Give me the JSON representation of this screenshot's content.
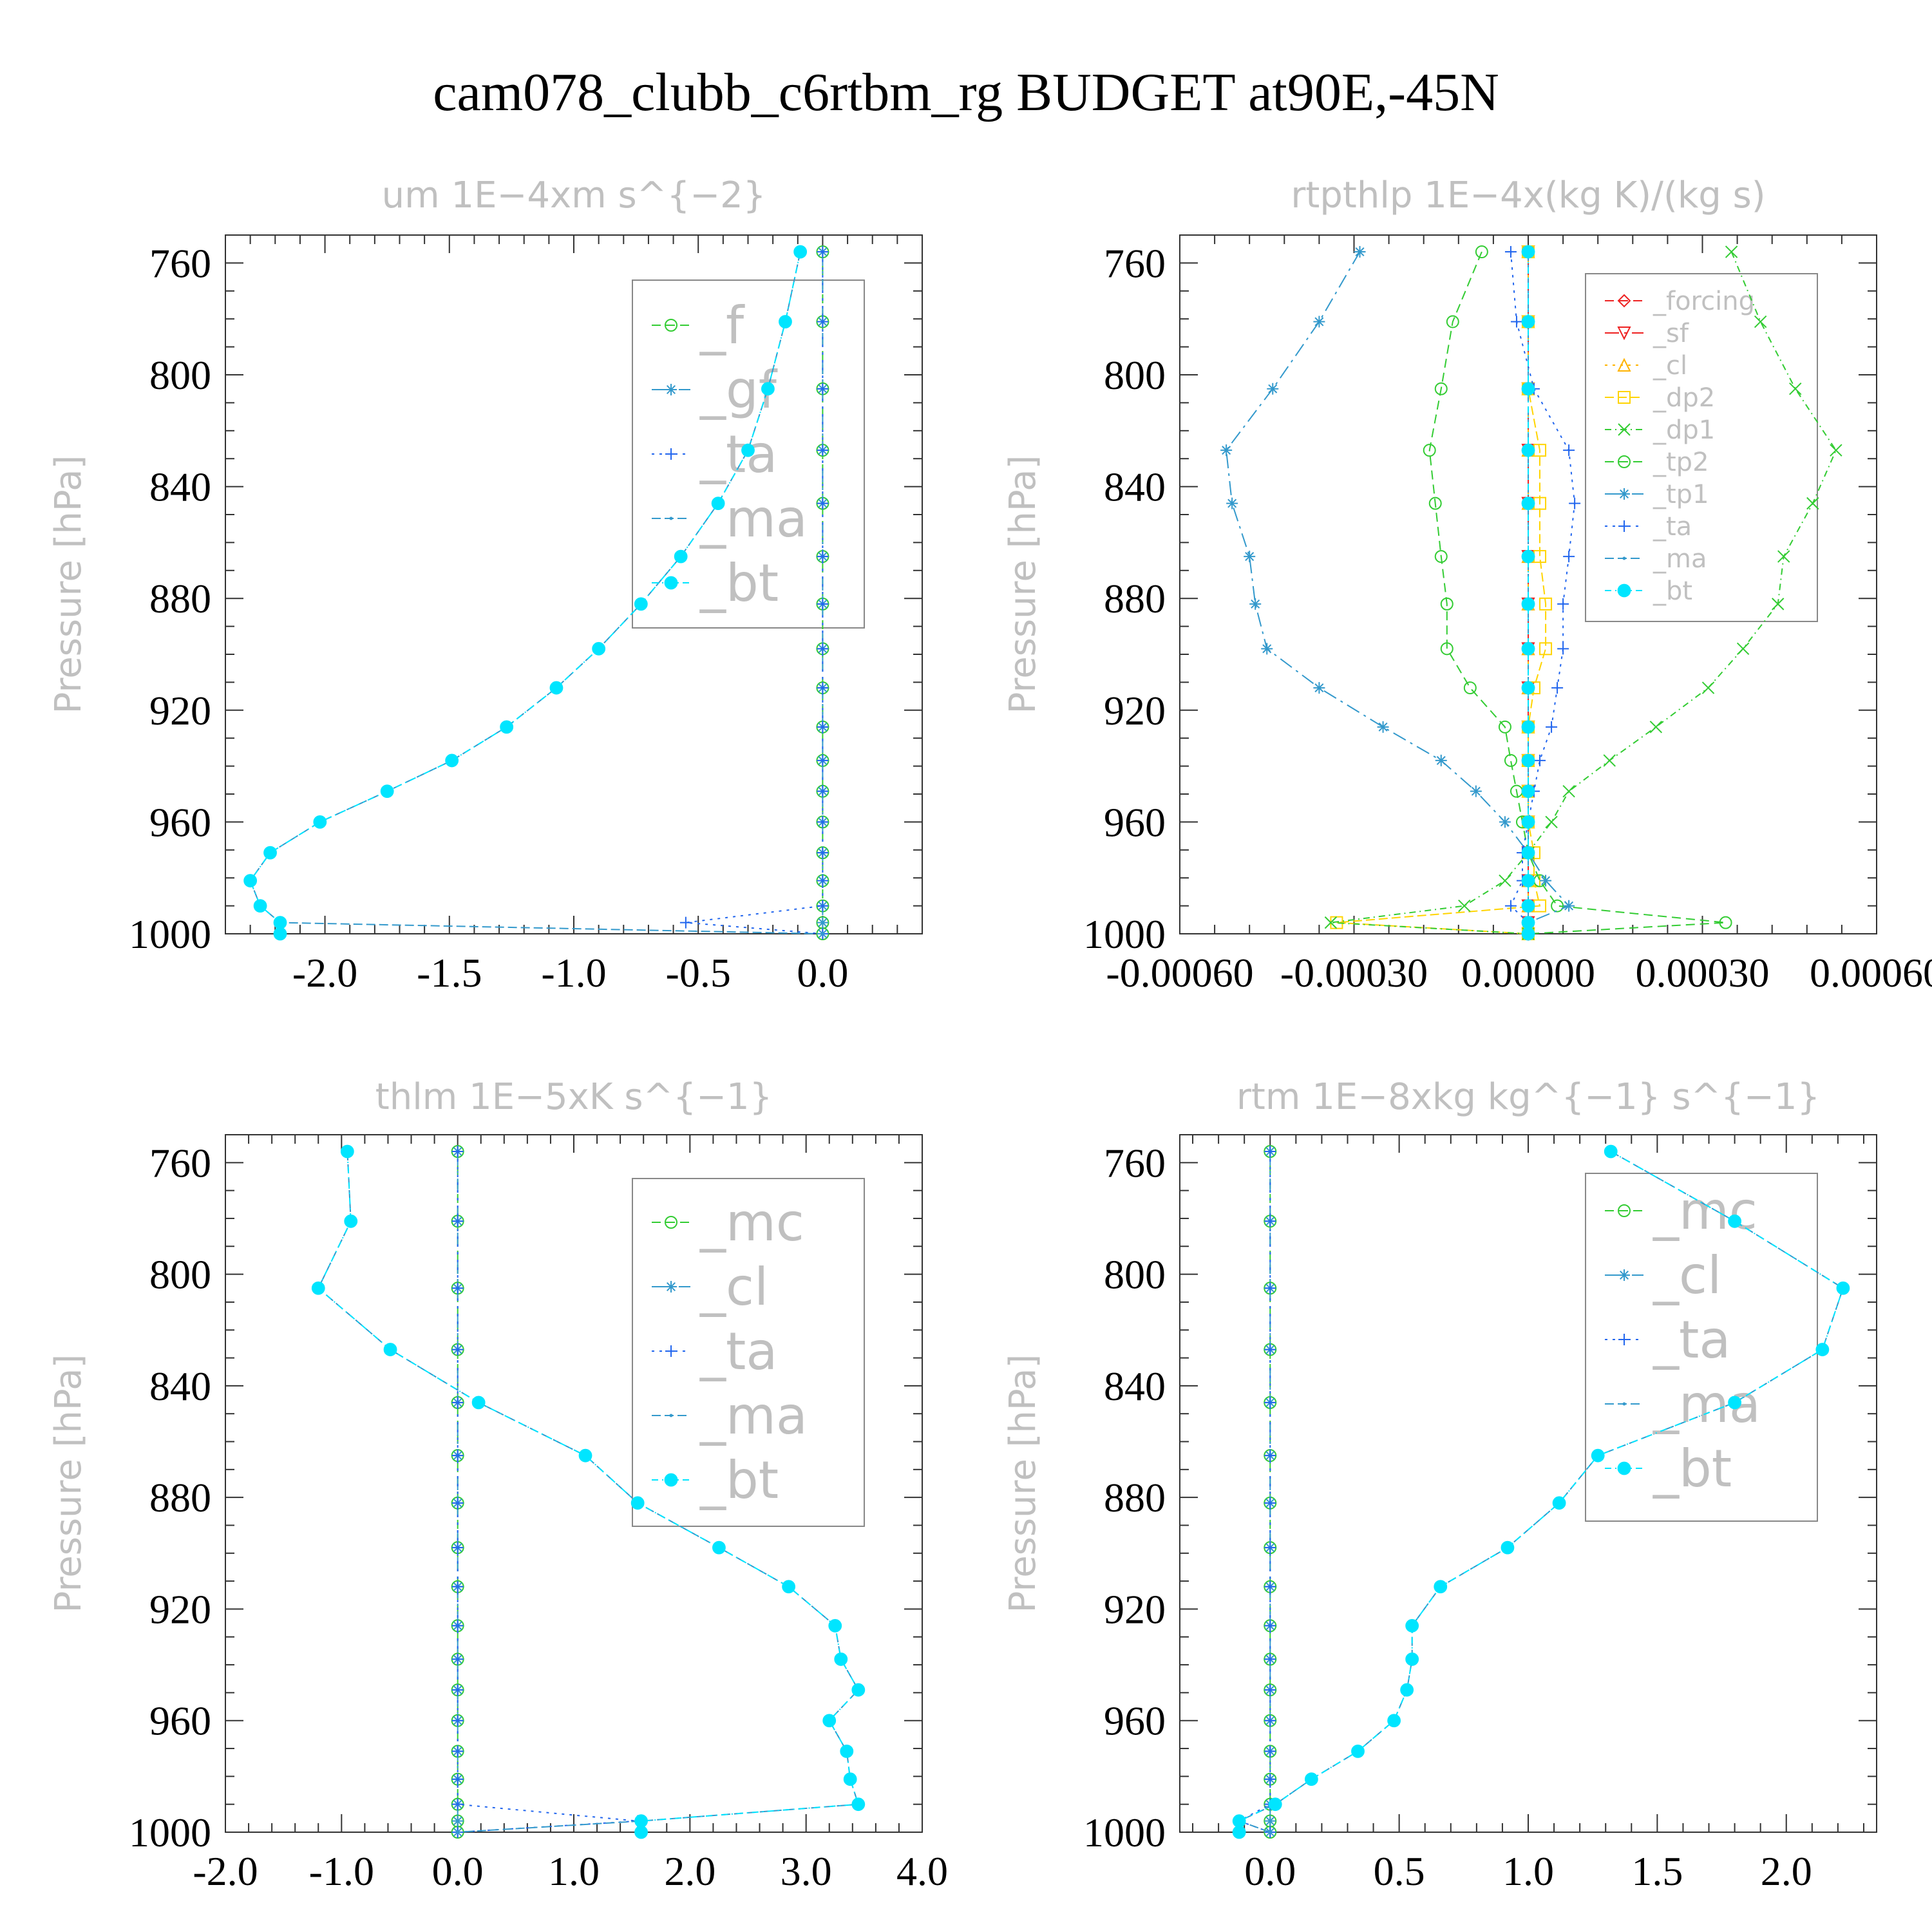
{
  "title": "cam078_clubb_c6rtbm_rg  BUDGET at90E,-45N",
  "colors": {
    "frame": "#333333",
    "label_gray": "#c0c0c0",
    "green": "#33cc33",
    "blue": "#2266ee",
    "cyan": "#00e5ff",
    "red": "#ee2222",
    "orange": "#ffb300",
    "yellow": "#ffd400",
    "teal": "#3399cc"
  },
  "levels": [
    756,
    781,
    805,
    827,
    846,
    865,
    882,
    898,
    912,
    926,
    938,
    949,
    960,
    971,
    981,
    990,
    996,
    1000
  ],
  "chart_data": [
    {
      "id": "um",
      "type": "line",
      "title": "um   1E−4xm s^{−2}",
      "ylabel": "Pressure [hPa]",
      "ylim": [
        1000,
        750
      ],
      "yticks": [
        "760",
        "800",
        "840",
        "880",
        "920",
        "960",
        "1000"
      ],
      "xlim": [
        -2.4,
        0.4
      ],
      "xticks": [
        "-2.0",
        "-1.5",
        "-1.0",
        "-0.5",
        "0.0"
      ],
      "legend": [
        "_f",
        "_gf",
        "_ta",
        "_ma",
        "_bt"
      ],
      "series": [
        {
          "name": "_f",
          "color": "green",
          "marker": "circle",
          "values": [
            0,
            0,
            0,
            0,
            0,
            0,
            0,
            0,
            0,
            0,
            0,
            0,
            0,
            0,
            0,
            0,
            0,
            0
          ]
        },
        {
          "name": "_gf",
          "color": "teal",
          "marker": "star",
          "values": [
            0,
            0,
            0,
            0,
            0,
            0,
            0,
            0,
            0,
            0,
            0,
            0,
            0,
            0,
            0,
            0,
            0,
            0
          ]
        },
        {
          "name": "_ta",
          "color": "blue",
          "marker": "plus",
          "values": [
            0,
            0,
            0,
            0,
            0,
            0,
            0,
            0,
            0,
            0,
            0,
            0,
            0,
            0,
            0,
            0,
            -0.55,
            0
          ]
        },
        {
          "name": "_ma",
          "color": "teal",
          "marker": "dot",
          "values": [
            -0.09,
            -0.15,
            -0.22,
            -0.3,
            -0.42,
            -0.57,
            -0.73,
            -0.9,
            -1.07,
            -1.27,
            -1.49,
            -1.75,
            -2.02,
            -2.22,
            -2.3,
            -2.26,
            -2.18,
            0
          ]
        },
        {
          "name": "_bt",
          "color": "cyan",
          "marker": "filled",
          "values": [
            -0.09,
            -0.15,
            -0.22,
            -0.3,
            -0.42,
            -0.57,
            -0.73,
            -0.9,
            -1.07,
            -1.27,
            -1.49,
            -1.75,
            -2.02,
            -2.22,
            -2.3,
            -2.26,
            -2.18,
            -2.18
          ]
        }
      ]
    },
    {
      "id": "rtpthlp",
      "type": "line",
      "title": "rtpthlp   1E−4x(kg K)/(kg s)",
      "ylabel": "Pressure [hPa]",
      "ylim": [
        1000,
        750
      ],
      "yticks": [
        "760",
        "800",
        "840",
        "880",
        "920",
        "960",
        "1000"
      ],
      "xlim": [
        -0.0006,
        0.0006
      ],
      "xticks": [
        "-0.00060",
        "-0.00030",
        "0.00000",
        "0.00030",
        "0.00060"
      ],
      "legend": [
        "_forcing",
        "_sf",
        "_cl",
        "_dp2",
        "_dp1",
        "_tp2",
        "_tp1",
        "_ta",
        "_ma",
        "_bt"
      ],
      "series": [
        {
          "name": "_forcing",
          "color": "red",
          "marker": "diamond",
          "values": [
            0,
            0,
            0,
            0,
            0,
            0,
            0,
            0,
            0,
            0,
            0,
            0,
            0,
            0,
            0,
            0,
            0,
            0
          ]
        },
        {
          "name": "_sf",
          "color": "red",
          "marker": "tri-down",
          "values": [
            0,
            0,
            0,
            0,
            0,
            0,
            0,
            0,
            0,
            0,
            0,
            0,
            0,
            0,
            0,
            0,
            0,
            0
          ]
        },
        {
          "name": "_cl",
          "color": "orange",
          "marker": "tri-up",
          "values": [
            0,
            0,
            0,
            0,
            0,
            0,
            0,
            0,
            0,
            0,
            0,
            0,
            0,
            0,
            0,
            0,
            0,
            0
          ]
        },
        {
          "name": "_dp2",
          "color": "yellow",
          "marker": "square",
          "values": [
            0,
            0,
            0,
            2e-05,
            2e-05,
            2e-05,
            3e-05,
            3e-05,
            1e-05,
            0,
            0,
            0,
            0,
            1e-05,
            1e-05,
            2e-05,
            -0.00033,
            0
          ]
        },
        {
          "name": "_dp1",
          "color": "green",
          "marker": "x",
          "values": [
            0.00035,
            0.0004,
            0.00046,
            0.00053,
            0.00049,
            0.00044,
            0.00043,
            0.00037,
            0.00031,
            0.00022,
            0.00014,
            7e-05,
            4e-05,
            0,
            -4e-05,
            -0.00011,
            -0.00034,
            0
          ]
        },
        {
          "name": "_tp2",
          "color": "green",
          "marker": "circle",
          "values": [
            -8e-05,
            -0.00013,
            -0.00015,
            -0.00017,
            -0.00016,
            -0.00015,
            -0.00014,
            -0.00014,
            -0.0001,
            -4e-05,
            -3e-05,
            -2e-05,
            -1e-05,
            0,
            2e-05,
            5e-05,
            0.00034,
            0
          ]
        },
        {
          "name": "_tp1",
          "color": "teal",
          "marker": "star",
          "values": [
            -0.00029,
            -0.00036,
            -0.00044,
            -0.00052,
            -0.00051,
            -0.00048,
            -0.00047,
            -0.00045,
            -0.00036,
            -0.00025,
            -0.00015,
            -9e-05,
            -4e-05,
            0,
            3e-05,
            7e-05,
            0,
            0
          ]
        },
        {
          "name": "_ta",
          "color": "blue",
          "marker": "plus",
          "values": [
            -3e-05,
            -2e-05,
            1e-05,
            7e-05,
            8e-05,
            7e-05,
            6e-05,
            6e-05,
            5e-05,
            4e-05,
            2e-05,
            1e-05,
            0,
            -1e-05,
            -1e-05,
            -3e-05,
            0,
            0
          ]
        },
        {
          "name": "_ma",
          "color": "teal",
          "marker": "dot",
          "values": [
            0,
            0,
            0,
            0,
            0,
            0,
            0,
            0,
            0,
            0,
            0,
            0,
            0,
            0,
            0,
            0,
            0,
            0
          ]
        },
        {
          "name": "_bt",
          "color": "cyan",
          "marker": "filled",
          "values": [
            0,
            0,
            0,
            0,
            0,
            0,
            0,
            0,
            0,
            0,
            0,
            0,
            0,
            0,
            0,
            0,
            0,
            0
          ]
        }
      ]
    },
    {
      "id": "thlm",
      "type": "line",
      "title": "thlm   1E−5xK s^{−1}",
      "ylabel": "Pressure [hPa]",
      "ylim": [
        1000,
        750
      ],
      "yticks": [
        "760",
        "800",
        "840",
        "880",
        "920",
        "960",
        "1000"
      ],
      "xlim": [
        -2.0,
        4.0
      ],
      "xticks": [
        "-2.0",
        "-1.0",
        "0.0",
        "1.0",
        "2.0",
        "3.0",
        "4.0"
      ],
      "legend": [
        "_mc",
        "_cl",
        "_ta",
        "_ma",
        "_bt"
      ],
      "series": [
        {
          "name": "_mc",
          "color": "green",
          "marker": "circle",
          "values": [
            0,
            0,
            0,
            0,
            0,
            0,
            0,
            0,
            0,
            0,
            0,
            0,
            0,
            0,
            0,
            0,
            0,
            0
          ]
        },
        {
          "name": "_cl",
          "color": "teal",
          "marker": "star",
          "values": [
            0,
            0,
            0,
            0,
            0,
            0,
            0,
            0,
            0,
            0,
            0,
            0,
            0,
            0,
            0,
            0,
            0,
            0
          ]
        },
        {
          "name": "_ta",
          "color": "blue",
          "marker": "plus",
          "values": [
            0,
            0,
            0,
            0,
            0,
            0,
            0,
            0,
            0,
            0,
            0,
            0,
            0,
            0,
            0,
            0,
            1.55,
            0
          ]
        },
        {
          "name": "_ma",
          "color": "teal",
          "marker": "dot",
          "values": [
            -0.95,
            -0.92,
            -1.2,
            -0.58,
            0.18,
            1.1,
            1.55,
            2.25,
            2.85,
            3.25,
            3.3,
            3.45,
            3.2,
            3.35,
            3.38,
            3.45,
            1.58,
            0
          ]
        },
        {
          "name": "_bt",
          "color": "cyan",
          "marker": "filled",
          "values": [
            -0.95,
            -0.92,
            -1.2,
            -0.58,
            0.18,
            1.1,
            1.55,
            2.25,
            2.85,
            3.25,
            3.3,
            3.45,
            3.2,
            3.35,
            3.38,
            3.45,
            1.58,
            1.58
          ]
        }
      ]
    },
    {
      "id": "rtm",
      "type": "line",
      "title": "rtm   1E−8xkg kg^{−1} s^{−1}",
      "ylabel": "Pressure [hPa]",
      "ylim": [
        1000,
        750
      ],
      "yticks": [
        "760",
        "800",
        "840",
        "880",
        "920",
        "960",
        "1000"
      ],
      "xlim": [
        -0.35,
        2.35
      ],
      "xticks": [
        "0.0",
        "0.5",
        "1.0",
        "1.5",
        "2.0"
      ],
      "legend": [
        "_mc",
        "_cl",
        "_ta",
        "_ma",
        "_bt"
      ],
      "series": [
        {
          "name": "_mc",
          "color": "green",
          "marker": "circle",
          "values": [
            0,
            0,
            0,
            0,
            0,
            0,
            0,
            0,
            0,
            0,
            0,
            0,
            0,
            0,
            0,
            0,
            0,
            0
          ]
        },
        {
          "name": "_cl",
          "color": "teal",
          "marker": "star",
          "values": [
            0,
            0,
            0,
            0,
            0,
            0,
            0,
            0,
            0,
            0,
            0,
            0,
            0,
            0,
            0,
            0,
            0,
            0
          ]
        },
        {
          "name": "_ta",
          "color": "blue",
          "marker": "plus",
          "values": [
            0,
            0,
            0,
            0,
            0,
            0,
            0,
            0,
            0,
            0,
            0,
            0,
            0,
            0,
            0,
            0,
            -0.12,
            0
          ]
        },
        {
          "name": "_ma",
          "color": "teal",
          "marker": "dot",
          "values": [
            1.32,
            1.8,
            2.22,
            2.14,
            1.8,
            1.27,
            1.12,
            0.92,
            0.66,
            0.55,
            0.55,
            0.53,
            0.48,
            0.34,
            0.16,
            0.02,
            -0.12,
            0
          ]
        },
        {
          "name": "_bt",
          "color": "cyan",
          "marker": "filled",
          "values": [
            1.32,
            1.8,
            2.22,
            2.14,
            1.8,
            1.27,
            1.12,
            0.92,
            0.66,
            0.55,
            0.55,
            0.53,
            0.48,
            0.34,
            0.16,
            0.02,
            -0.12,
            -0.12
          ]
        }
      ]
    }
  ]
}
